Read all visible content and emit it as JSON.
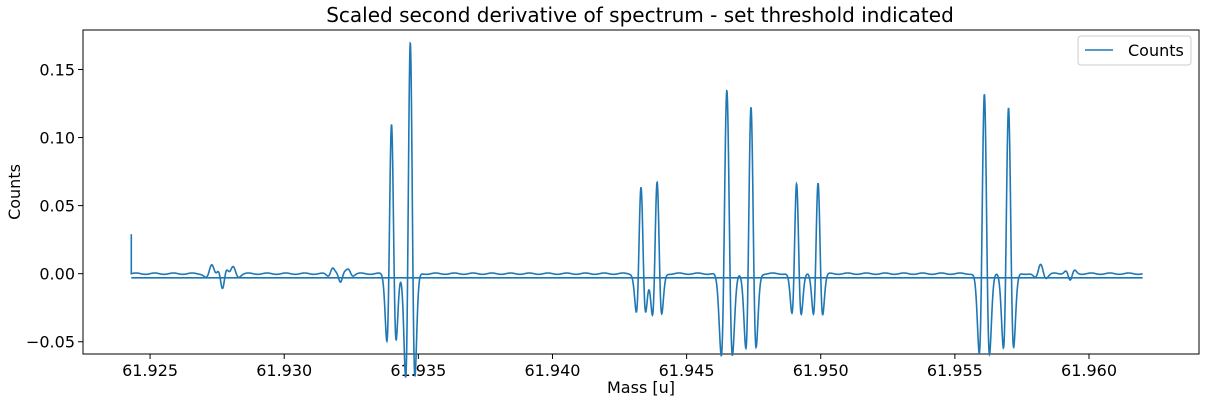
{
  "chart_data": {
    "type": "line",
    "title": "Scaled second derivative of spectrum - set threshold indicated",
    "xlabel": "Mass [u]",
    "ylabel": "Counts",
    "xlim": [
      61.9225,
      61.9641
    ],
    "ylim": [
      -0.059,
      0.179
    ],
    "xticks": [
      61.925,
      61.93,
      61.935,
      61.94,
      61.945,
      61.95,
      61.955,
      61.96
    ],
    "xtick_labels": [
      "61.925",
      "61.930",
      "61.935",
      "61.940",
      "61.945",
      "61.950",
      "61.955",
      "61.960"
    ],
    "yticks": [
      -0.05,
      0.0,
      0.05,
      0.1,
      0.15
    ],
    "ytick_labels": [
      "−0.05",
      "0.00",
      "0.05",
      "0.10",
      "0.15"
    ],
    "grid": false,
    "legend": {
      "position": "top-right",
      "entries": [
        "Counts"
      ]
    },
    "color": "#1f77b4",
    "threshold": {
      "value": -0.003,
      "x_start": 61.9243,
      "x_end": 61.962
    },
    "series": [
      {
        "name": "Counts",
        "x_start": 61.9243,
        "x_end": 61.962,
        "peaks": [
          {
            "center": 61.934,
            "height": 0.11,
            "width": 0.0001
          },
          {
            "center": 61.9347,
            "height": 0.17,
            "width": 0.0001
          },
          {
            "center": 61.9433,
            "height": 0.063,
            "width": 0.0001
          },
          {
            "center": 61.9439,
            "height": 0.067,
            "width": 0.0001
          },
          {
            "center": 61.9465,
            "height": 0.135,
            "width": 0.00012
          },
          {
            "center": 61.9474,
            "height": 0.122,
            "width": 0.00011
          },
          {
            "center": 61.9491,
            "height": 0.066,
            "width": 0.0001
          },
          {
            "center": 61.9499,
            "height": 0.067,
            "width": 0.0001
          },
          {
            "center": 61.9561,
            "height": 0.132,
            "width": 0.00011
          },
          {
            "center": 61.957,
            "height": 0.122,
            "width": 0.00011
          }
        ],
        "small_bumps": [
          {
            "center": 61.9273,
            "height": 0.006,
            "width": 0.00012
          },
          {
            "center": 61.9277,
            "height": -0.01,
            "width": 0.0001
          },
          {
            "center": 61.9281,
            "height": 0.005,
            "width": 0.00012
          },
          {
            "center": 61.9318,
            "height": 0.004,
            "width": 0.0001
          },
          {
            "center": 61.9321,
            "height": -0.006,
            "width": 0.0001
          },
          {
            "center": 61.9324,
            "height": 0.003,
            "width": 0.0001
          },
          {
            "center": 61.9582,
            "height": 0.007,
            "width": 0.00012
          },
          {
            "center": 61.9593,
            "height": -0.005,
            "width": 0.0001
          }
        ],
        "start_spike": 0.029
      }
    ]
  }
}
